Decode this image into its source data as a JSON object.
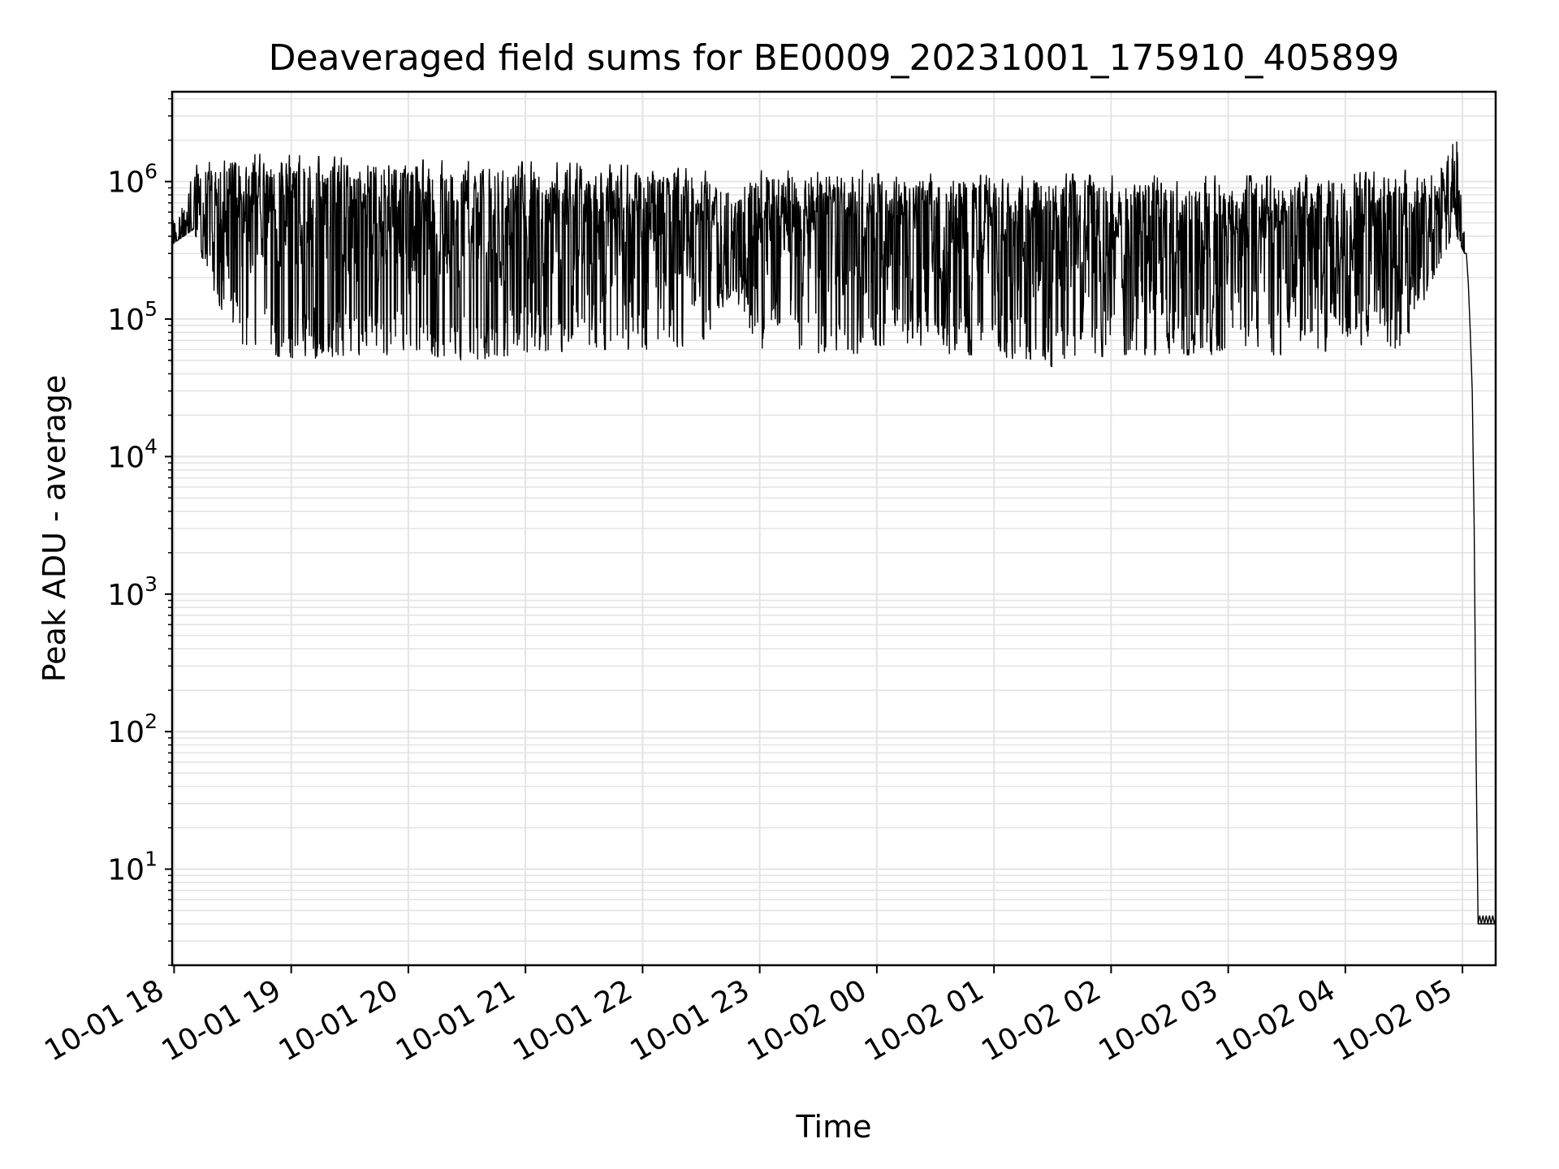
{
  "chart_data": {
    "type": "line",
    "title": "Deaveraged field sums for BE0009_20231001_175910_405899",
    "xlabel": "Time",
    "ylabel": "Peak ADU - average",
    "yscale": "log",
    "ylim": [
      2,
      4500000
    ],
    "xlim": [
      "2023-10-01 17:59",
      "2023-10-02 05:17"
    ],
    "grid": true,
    "x_ticks": [
      {
        "t": "2023-10-01 18:00",
        "label": "10-01 18"
      },
      {
        "t": "2023-10-01 19:00",
        "label": "10-01 19"
      },
      {
        "t": "2023-10-01 20:00",
        "label": "10-01 20"
      },
      {
        "t": "2023-10-01 21:00",
        "label": "10-01 21"
      },
      {
        "t": "2023-10-01 22:00",
        "label": "10-01 22"
      },
      {
        "t": "2023-10-01 23:00",
        "label": "10-01 23"
      },
      {
        "t": "2023-10-02 00:00",
        "label": "10-02 00"
      },
      {
        "t": "2023-10-02 01:00",
        "label": "10-02 01"
      },
      {
        "t": "2023-10-02 02:00",
        "label": "10-02 02"
      },
      {
        "t": "2023-10-02 03:00",
        "label": "10-02 03"
      },
      {
        "t": "2023-10-02 04:00",
        "label": "10-02 04"
      },
      {
        "t": "2023-10-02 05:00",
        "label": "10-02 05"
      }
    ],
    "y_ticks": [
      {
        "value": 10,
        "base": "10",
        "exp": "1"
      },
      {
        "value": 100,
        "base": "10",
        "exp": "2"
      },
      {
        "value": 1000,
        "base": "10",
        "exp": "3"
      },
      {
        "value": 10000,
        "base": "10",
        "exp": "4"
      },
      {
        "value": 100000,
        "base": "10",
        "exp": "5"
      },
      {
        "value": 1000000,
        "base": "10",
        "exp": "6"
      }
    ],
    "series": [
      {
        "color": "#000000",
        "envelope": [
          {
            "t": "2023-10-01 17:59",
            "lo": 350000,
            "hi": 500000
          },
          {
            "t": "2023-10-01 18:10",
            "lo": 450000,
            "hi": 1300000
          },
          {
            "t": "2023-10-01 18:20",
            "lo": 150000,
            "hi": 1400000
          },
          {
            "t": "2023-10-01 18:35",
            "lo": 65000,
            "hi": 1600000
          },
          {
            "t": "2023-10-01 19:00",
            "lo": 50000,
            "hi": 1550000
          },
          {
            "t": "2023-10-01 19:30",
            "lo": 55000,
            "hi": 1500000
          },
          {
            "t": "2023-10-01 20:00",
            "lo": 55000,
            "hi": 1450000
          },
          {
            "t": "2023-10-01 20:30",
            "lo": 50000,
            "hi": 1400000
          },
          {
            "t": "2023-10-01 21:00",
            "lo": 55000,
            "hi": 1400000
          },
          {
            "t": "2023-10-01 21:30",
            "lo": 60000,
            "hi": 1350000
          },
          {
            "t": "2023-10-01 22:00",
            "lo": 60000,
            "hi": 1300000
          },
          {
            "t": "2023-10-01 22:30",
            "lo": 65000,
            "hi": 1250000
          },
          {
            "t": "2023-10-01 22:45",
            "lo": 150000,
            "hi": 900000
          },
          {
            "t": "2023-10-01 23:00",
            "lo": 60000,
            "hi": 1200000
          },
          {
            "t": "2023-10-01 23:30",
            "lo": 55000,
            "hi": 1250000
          },
          {
            "t": "2023-10-02 00:00",
            "lo": 55000,
            "hi": 1200000
          },
          {
            "t": "2023-10-02 00:30",
            "lo": 55000,
            "hi": 1150000
          },
          {
            "t": "2023-10-02 01:00",
            "lo": 55000,
            "hi": 1100000
          },
          {
            "t": "2023-10-02 01:30",
            "lo": 45000,
            "hi": 1150000
          },
          {
            "t": "2023-10-02 02:00",
            "lo": 55000,
            "hi": 1100000
          },
          {
            "t": "2023-10-02 02:30",
            "lo": 55000,
            "hi": 1100000
          },
          {
            "t": "2023-10-02 03:00",
            "lo": 55000,
            "hi": 1100000
          },
          {
            "t": "2023-10-02 03:30",
            "lo": 55000,
            "hi": 1100000
          },
          {
            "t": "2023-10-02 04:00",
            "lo": 60000,
            "hi": 1150000
          },
          {
            "t": "2023-10-02 04:30",
            "lo": 60000,
            "hi": 1200000
          },
          {
            "t": "2023-10-02 04:50",
            "lo": 300000,
            "hi": 1500000
          },
          {
            "t": "2023-10-02 04:57",
            "lo": 400000,
            "hi": 2400000
          },
          {
            "t": "2023-10-02 05:01",
            "lo": 300000,
            "hi": 400000
          }
        ],
        "tail": [
          {
            "t": "2023-10-02 05:01",
            "y": 380000
          },
          {
            "t": "2023-10-02 05:02",
            "y": 300000
          },
          {
            "t": "2023-10-02 05:03",
            "y": 180000
          },
          {
            "t": "2023-10-02 05:04",
            "y": 80000
          },
          {
            "t": "2023-10-02 05:05",
            "y": 30000
          },
          {
            "t": "2023-10-02 05:06",
            "y": 3000
          },
          {
            "t": "2023-10-02 05:07",
            "y": 60
          },
          {
            "t": "2023-10-02 05:08",
            "y": 4
          },
          {
            "t": "2023-10-02 05:17",
            "y": 4
          }
        ]
      }
    ]
  }
}
